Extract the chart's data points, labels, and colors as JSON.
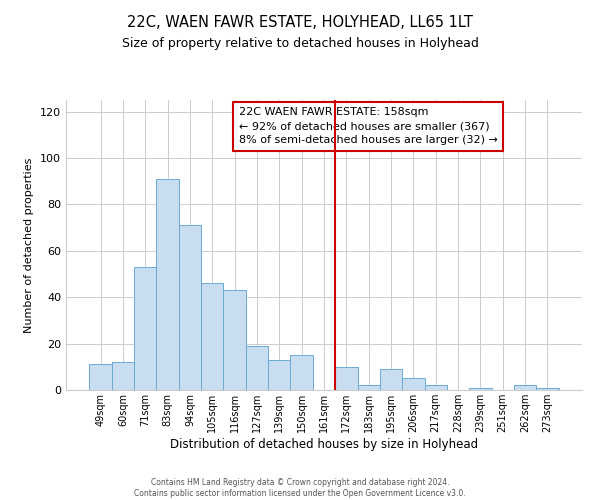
{
  "title": "22C, WAEN FAWR ESTATE, HOLYHEAD, LL65 1LT",
  "subtitle": "Size of property relative to detached houses in Holyhead",
  "xlabel": "Distribution of detached houses by size in Holyhead",
  "ylabel": "Number of detached properties",
  "bar_labels": [
    "49sqm",
    "60sqm",
    "71sqm",
    "83sqm",
    "94sqm",
    "105sqm",
    "116sqm",
    "127sqm",
    "139sqm",
    "150sqm",
    "161sqm",
    "172sqm",
    "183sqm",
    "195sqm",
    "206sqm",
    "217sqm",
    "228sqm",
    "239sqm",
    "251sqm",
    "262sqm",
    "273sqm"
  ],
  "bar_values": [
    11,
    12,
    53,
    91,
    71,
    46,
    43,
    19,
    13,
    15,
    0,
    10,
    2,
    9,
    5,
    2,
    0,
    1,
    0,
    2,
    1
  ],
  "bar_color": "#c8ddf0",
  "bar_edge_color": "#6aaad4",
  "vline_x": 10.5,
  "vline_color": "#cc0000",
  "annotation_title": "22C WAEN FAWR ESTATE: 158sqm",
  "annotation_line1": "← 92% of detached houses are smaller (367)",
  "annotation_line2": "8% of semi-detached houses are larger (32) →",
  "annotation_box_edge": "#cc0000",
  "ylim": [
    0,
    125
  ],
  "yticks": [
    0,
    20,
    40,
    60,
    80,
    100,
    120
  ],
  "footer1": "Contains HM Land Registry data © Crown copyright and database right 2024.",
  "footer2": "Contains public sector information licensed under the Open Government Licence v3.0."
}
